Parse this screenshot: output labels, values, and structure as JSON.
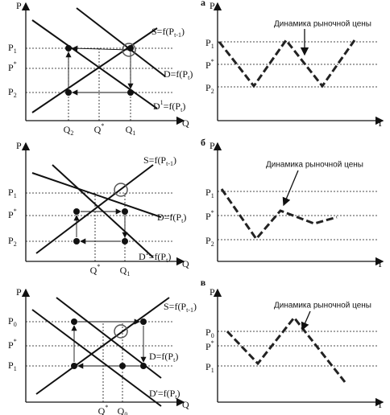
{
  "panels": [
    {
      "label": "а",
      "left": {
        "y_axis": "P",
        "x_axis": "Q",
        "prices": [
          [
            {
              "t": "P"
            },
            {
              "t": "1",
              "sub": true
            }
          ],
          [
            {
              "t": "P"
            },
            {
              "t": "*",
              "sup": true
            }
          ],
          [
            {
              "t": "P"
            },
            {
              "t": "2",
              "sub": true
            }
          ]
        ],
        "quantities": [
          [
            {
              "t": "Q"
            },
            {
              "t": "2",
              "sub": true
            }
          ],
          [
            {
              "t": "Q"
            },
            {
              "t": "*",
              "sup": true
            }
          ],
          [
            {
              "t": "Q"
            },
            {
              "t": "1",
              "sub": true
            }
          ]
        ],
        "curves": [
          [
            {
              "t": "S=f(P"
            },
            {
              "t": "t-1",
              "sub": true
            },
            {
              "t": ")"
            }
          ],
          [
            {
              "t": "D=f(P"
            },
            {
              "t": "t",
              "sub": true
            },
            {
              "t": ")"
            }
          ],
          [
            {
              "t": "D"
            },
            {
              "t": "1",
              "sup": true
            },
            {
              "t": "=f(P"
            },
            {
              "t": "t",
              "sub": true
            },
            {
              "t": ")"
            }
          ]
        ]
      },
      "right": {
        "y_axis": "P",
        "x_axis": "T",
        "prices": [
          [
            {
              "t": "P"
            },
            {
              "t": "1",
              "sub": true
            }
          ],
          [
            {
              "t": "P"
            },
            {
              "t": "*",
              "sup": true
            }
          ],
          [
            {
              "t": "P"
            },
            {
              "t": "2",
              "sub": true
            }
          ]
        ],
        "annotation": "Динамика рыночной цены"
      }
    },
    {
      "label": "б",
      "left": {
        "y_axis": "P",
        "x_axis": "Q",
        "prices": [
          [
            {
              "t": "P"
            },
            {
              "t": "1",
              "sub": true
            }
          ],
          [
            {
              "t": "P"
            },
            {
              "t": "*",
              "sup": true
            }
          ],
          [
            {
              "t": "P"
            },
            {
              "t": "2",
              "sub": true
            }
          ]
        ],
        "quantities": [
          [
            {
              "t": "Q"
            },
            {
              "t": "*",
              "sup": true
            }
          ],
          [
            {
              "t": "Q"
            },
            {
              "t": "1",
              "sub": true
            }
          ]
        ],
        "curves": [
          [
            {
              "t": "S=f(P"
            },
            {
              "t": "t-1",
              "sub": true
            },
            {
              "t": ")"
            }
          ],
          [
            {
              "t": "D=f(P"
            },
            {
              "t": "t",
              "sub": true
            },
            {
              "t": ")"
            }
          ],
          [
            {
              "t": "D"
            },
            {
              "t": "1",
              "sup": true
            },
            {
              "t": "=f(P"
            },
            {
              "t": "t",
              "sub": true
            },
            {
              "t": ")"
            }
          ]
        ]
      },
      "right": {
        "y_axis": "P",
        "x_axis": "T",
        "prices": [
          [
            {
              "t": "P"
            },
            {
              "t": "1",
              "sub": true
            }
          ],
          [
            {
              "t": "P"
            },
            {
              "t": "*",
              "sup": true
            }
          ],
          [
            {
              "t": "P"
            },
            {
              "t": "2",
              "sub": true
            }
          ]
        ],
        "annotation": "Динамика рыночной цены"
      }
    },
    {
      "label": "в",
      "left": {
        "y_axis": "P",
        "x_axis": "Q",
        "prices": [
          [
            {
              "t": "P"
            },
            {
              "t": "0",
              "sub": true
            }
          ],
          [
            {
              "t": "P"
            },
            {
              "t": "*",
              "sup": true
            }
          ],
          [
            {
              "t": "P"
            },
            {
              "t": "1",
              "sub": true
            }
          ]
        ],
        "quantities": [
          [
            {
              "t": "Q"
            },
            {
              "t": "*",
              "sup": true
            }
          ],
          [
            {
              "t": "Q"
            },
            {
              "t": "0",
              "sub": true
            }
          ]
        ],
        "curves": [
          [
            {
              "t": "S=f(P"
            },
            {
              "t": "t-1",
              "sub": true
            },
            {
              "t": ")"
            }
          ],
          [
            {
              "t": "D=f(P"
            },
            {
              "t": "t",
              "sub": true
            },
            {
              "t": ")"
            }
          ],
          [
            {
              "t": "D'=f(P"
            },
            {
              "t": "t",
              "sub": true
            },
            {
              "t": ")"
            }
          ]
        ]
      },
      "right": {
        "y_axis": "P",
        "x_axis": "T",
        "prices": [
          [
            {
              "t": "P"
            },
            {
              "t": "0",
              "sub": true
            }
          ],
          [
            {
              "t": "P"
            },
            {
              "t": "*",
              "sup": true
            }
          ],
          [
            {
              "t": "P"
            },
            {
              "t": "1",
              "sub": true
            }
          ]
        ],
        "annotation": "Динамика рыночной цены"
      }
    }
  ]
}
